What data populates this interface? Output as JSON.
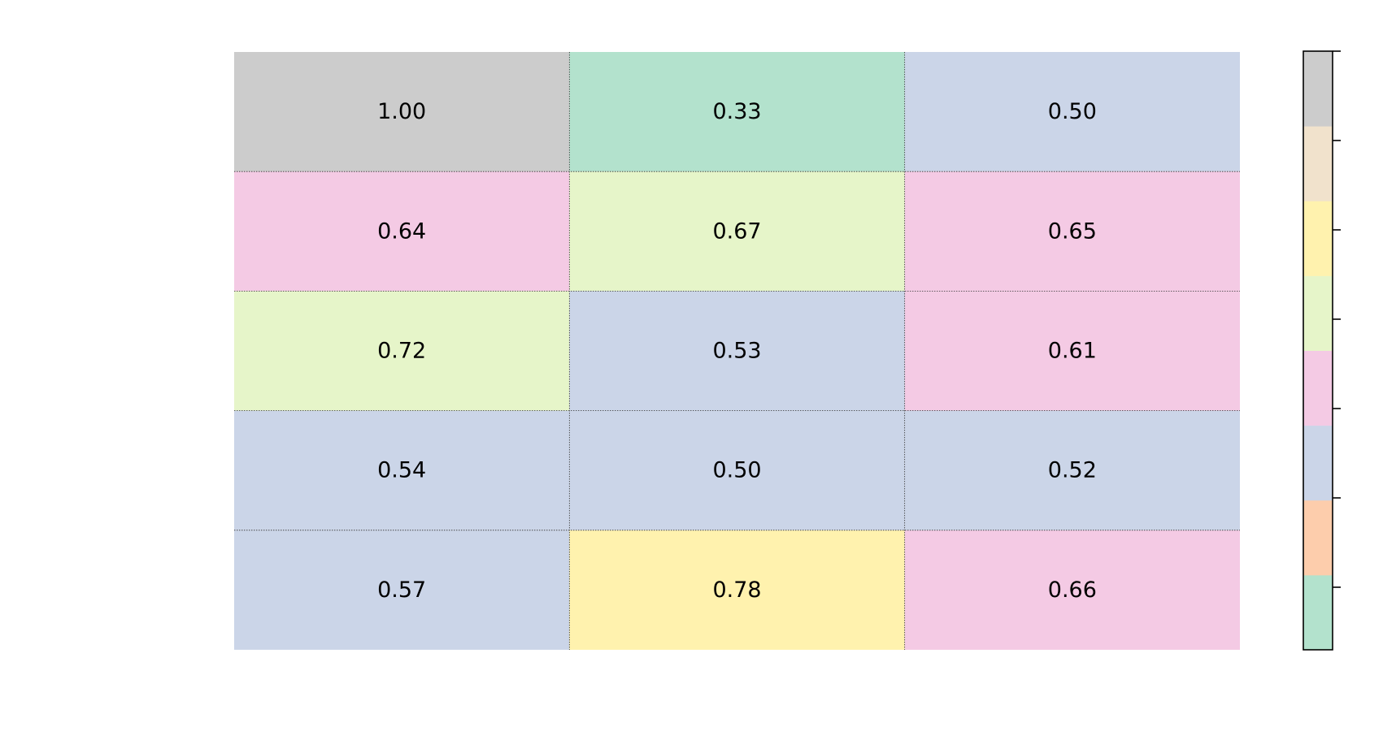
{
  "chart_data": {
    "type": "heatmap",
    "title": "",
    "xlabel": "",
    "ylabel": "",
    "rows": 5,
    "cols": 3,
    "values": [
      [
        1.0,
        0.33,
        0.5
      ],
      [
        0.64,
        0.67,
        0.65
      ],
      [
        0.72,
        0.53,
        0.61
      ],
      [
        0.54,
        0.5,
        0.52
      ],
      [
        0.57,
        0.78,
        0.66
      ]
    ],
    "cell_labels": [
      [
        "1.00",
        "0.33",
        "0.50"
      ],
      [
        "0.64",
        "0.67",
        "0.65"
      ],
      [
        "0.72",
        "0.53",
        "0.61"
      ],
      [
        "0.54",
        "0.50",
        "0.52"
      ],
      [
        "0.57",
        "0.78",
        "0.66"
      ]
    ],
    "colormap": "Pastel2",
    "value_range": [
      0.33,
      1.0
    ],
    "colorbar": {
      "position": "right",
      "colors": [
        "#b3e2cd",
        "#fdcdac",
        "#cbd5e8",
        "#f4cae4",
        "#e6f5c9",
        "#fff2ae",
        "#f1e2cc",
        "#cccccc"
      ],
      "tick_count": 6,
      "tick_labels": []
    },
    "grid": true,
    "grid_style": "dotted",
    "text_color": "#000000"
  }
}
